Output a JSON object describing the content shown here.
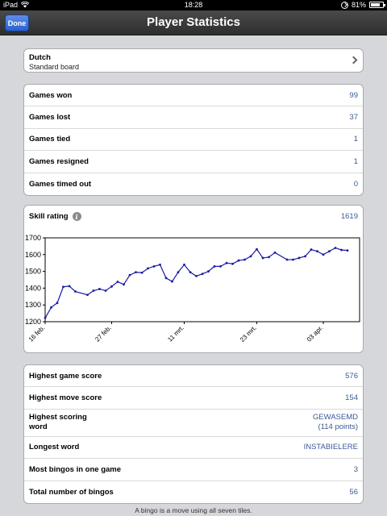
{
  "status": {
    "device": "iPad",
    "time": "18:28",
    "battery": "81%",
    "battery_level": 0.81
  },
  "nav": {
    "done": "Done",
    "title": "Player Statistics"
  },
  "language": {
    "name": "Dutch",
    "board": "Standard board"
  },
  "games": [
    {
      "label": "Games won",
      "value": "99"
    },
    {
      "label": "Games lost",
      "value": "37"
    },
    {
      "label": "Games tied",
      "value": "1"
    },
    {
      "label": "Games resigned",
      "value": "1"
    },
    {
      "label": "Games timed out",
      "value": "0"
    }
  ],
  "skill": {
    "label": "Skill rating",
    "value": "1619"
  },
  "chart_data": {
    "type": "line",
    "ylim": [
      1200,
      1700
    ],
    "yticks": [
      1200,
      1300,
      1400,
      1500,
      1600,
      1700
    ],
    "xticks": [
      {
        "label": "16 feb.",
        "x": 0
      },
      {
        "label": "27 feb.",
        "x": 11
      },
      {
        "label": "11 mrt.",
        "x": 23
      },
      {
        "label": "23 mrt.",
        "x": 35
      },
      {
        "label": "03 apr.",
        "x": 46
      }
    ],
    "x": [
      0,
      1,
      2,
      3,
      4,
      5,
      7,
      8,
      9,
      10,
      11,
      12,
      13,
      14,
      15,
      16,
      17,
      18,
      19,
      20,
      21,
      22,
      23,
      24,
      25,
      26,
      27,
      28,
      29,
      30,
      31,
      32,
      33,
      34,
      35,
      36,
      37,
      38,
      40,
      41,
      42,
      43,
      44,
      45,
      46,
      47,
      48,
      49,
      50
    ],
    "y": [
      1222,
      1285,
      1312,
      1408,
      1412,
      1380,
      1360,
      1385,
      1395,
      1385,
      1410,
      1438,
      1422,
      1478,
      1495,
      1492,
      1518,
      1530,
      1540,
      1460,
      1440,
      1495,
      1540,
      1495,
      1472,
      1485,
      1500,
      1530,
      1530,
      1550,
      1545,
      1565,
      1570,
      1590,
      1632,
      1580,
      1585,
      1612,
      1570,
      1570,
      1580,
      1590,
      1630,
      1620,
      1600,
      1620,
      1640,
      1628,
      1625
    ]
  },
  "scores": [
    {
      "label": "Highest game score",
      "value": "576"
    },
    {
      "label": "Highest move score",
      "value": "154"
    },
    {
      "label": "Highest scoring word",
      "value": "GEWASEMD",
      "sub": "(114 points)"
    },
    {
      "label": "Longest word",
      "value": "INSTABIELERE"
    },
    {
      "label": "Most bingos in one game",
      "value": "3"
    },
    {
      "label": "Total number of bingos",
      "value": "56"
    }
  ],
  "footer": "A bingo is a move using all seven tiles."
}
